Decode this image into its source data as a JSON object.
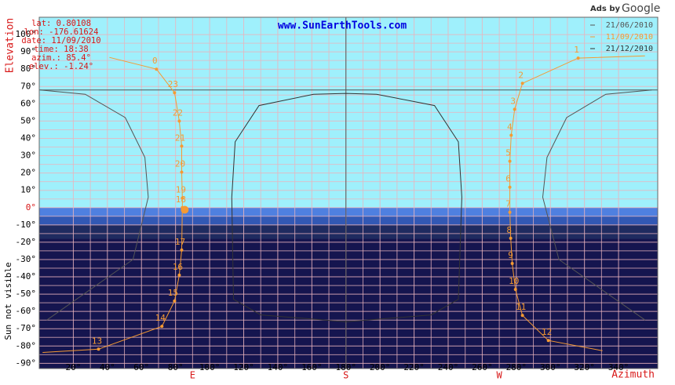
{
  "ads": {
    "prefix": "Ads by",
    "brand": "Google"
  },
  "chart_data": {
    "type": "sunpath",
    "title": "www.SunEarthTools.com",
    "y_label": "Elevation",
    "y_label_below": "Sun not visible",
    "x_label": "Azimuth",
    "info": [
      "lat: 0.80108",
      "lon: -176.61624",
      "date: 11/09/2010",
      "time: 18:38",
      "azim.: 85.4°",
      "elev.: -1.24°"
    ],
    "xlim": [
      0,
      363
    ],
    "ylim": [
      -93,
      110
    ],
    "xticks": [
      {
        "value": 20,
        "label": "20°"
      },
      {
        "value": 40,
        "label": "40°"
      },
      {
        "value": 60,
        "label": "60°"
      },
      {
        "value": 80,
        "label": "80°"
      },
      {
        "value": 100,
        "label": "100°"
      },
      {
        "value": 120,
        "label": "120°"
      },
      {
        "value": 140,
        "label": "140°"
      },
      {
        "value": 160,
        "label": "160°"
      },
      {
        "value": 180,
        "label": "180°"
      },
      {
        "value": 200,
        "label": "200°"
      },
      {
        "value": 220,
        "label": "220°"
      },
      {
        "value": 240,
        "label": "240°"
      },
      {
        "value": 260,
        "label": "260°"
      },
      {
        "value": 280,
        "label": "280°"
      },
      {
        "value": 300,
        "label": "300°"
      },
      {
        "value": 320,
        "label": "320°"
      },
      {
        "value": 340,
        "label": "340°"
      }
    ],
    "yticks": [
      {
        "value": 100,
        "label": "100°"
      },
      {
        "value": 90,
        "label": "90°"
      },
      {
        "value": 80,
        "label": "80°"
      },
      {
        "value": 70,
        "label": "70°"
      },
      {
        "value": 60,
        "label": "60°"
      },
      {
        "value": 50,
        "label": "50°"
      },
      {
        "value": 40,
        "label": "40°"
      },
      {
        "value": 30,
        "label": "30°"
      },
      {
        "value": 20,
        "label": "20°"
      },
      {
        "value": 10,
        "label": "10°"
      },
      {
        "value": 0,
        "label": "0°"
      },
      {
        "value": -10,
        "label": "-10°"
      },
      {
        "value": -20,
        "label": "-20°"
      },
      {
        "value": -30,
        "label": "-30°"
      },
      {
        "value": -40,
        "label": "-40°"
      },
      {
        "value": -50,
        "label": "-50°"
      },
      {
        "value": -60,
        "label": "-60°"
      },
      {
        "value": -70,
        "label": "-70°"
      },
      {
        "value": -80,
        "label": "-80°"
      },
      {
        "value": -90,
        "label": "-90°"
      }
    ],
    "compass": [
      {
        "value": 90,
        "label": "E"
      },
      {
        "value": 180,
        "label": "S"
      },
      {
        "value": 270,
        "label": "W"
      }
    ],
    "sky_color": "#9ff0fc",
    "bands": [
      {
        "from": 0,
        "to": -5,
        "color": "#4f80e0"
      },
      {
        "from": -5,
        "to": -10,
        "color": "#3258b4"
      },
      {
        "from": -10,
        "to": -18,
        "color": "#1f2b60"
      },
      {
        "from": -18,
        "to": -93,
        "color": "#15154f"
      }
    ],
    "grid": true,
    "crosshair": {
      "azimuth": 180,
      "elevation": 68
    },
    "marker": {
      "azimuth": 85.4,
      "elevation": -1.24,
      "color": "#f59a33"
    },
    "series": [
      {
        "name": "21/06/2010",
        "color": "#555555",
        "x": [
          4.4,
          55,
          64,
          62,
          50.5,
          27,
          0.6,
          null,
          359.5,
          332.5,
          309.5,
          298,
          295.5,
          305,
          355.6
        ],
        "values": [
          -65,
          -30,
          6,
          29,
          52,
          65.5,
          68,
          null,
          68,
          65.5,
          52,
          29,
          6,
          -30,
          -65
        ]
      },
      {
        "name": "11/09/2010",
        "color": "#f59a33",
        "x": [
          41.2,
          68.8,
          79.4,
          82.2,
          83.6,
          83.6,
          84,
          84,
          83.6,
          82.2,
          79.4,
          72,
          34.8,
          2,
          null,
          355.5,
          316.3,
          283.6,
          279,
          277,
          276.2,
          276.2,
          276.2,
          276.7,
          277.6,
          279.5,
          283.6,
          298.8,
          330.6
        ],
        "values": [
          86.8,
          80,
          66.4,
          50,
          35.5,
          20.5,
          5.5,
          0,
          -24.5,
          -39,
          -54,
          -68.6,
          -81.8,
          -83.7,
          null,
          87.7,
          86.4,
          71.8,
          56.8,
          41.8,
          26.8,
          11.8,
          -2.7,
          -17.7,
          -32.3,
          -47.3,
          -62.3,
          -76.8,
          -82.7
        ],
        "labels": [
          null,
          "0",
          "23",
          "22",
          "21",
          "20",
          "19",
          "18",
          "17",
          "16",
          "15",
          "14",
          "13",
          null,
          null,
          null,
          "1",
          "2",
          "3",
          "4",
          "5",
          "6",
          "7",
          "8",
          "9",
          "10",
          "11",
          "12",
          null
        ]
      },
      {
        "name": "21/12/2010",
        "color": "#333333",
        "x": [
          114,
          113,
          115,
          129,
          161,
          180,
          198,
          232,
          246,
          248,
          246,
          230,
          180,
          130,
          114
        ],
        "values": [
          -53,
          6,
          38,
          59,
          65.5,
          66,
          65.5,
          59,
          38,
          6,
          -53,
          -62,
          -66,
          -62,
          -53
        ]
      }
    ]
  }
}
